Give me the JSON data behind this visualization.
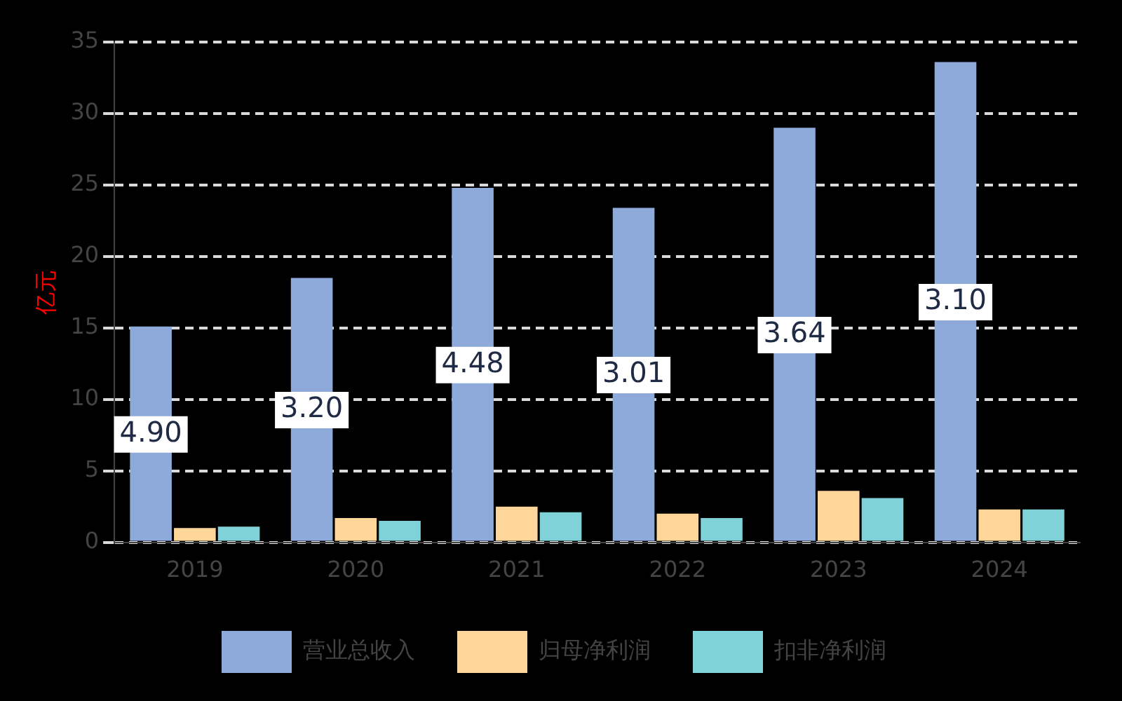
{
  "chart_data": {
    "type": "bar",
    "ylabel": "亿元",
    "categories": [
      "2019",
      "2020",
      "2021",
      "2022",
      "2023",
      "2024"
    ],
    "series": [
      {
        "name": "营业总收入",
        "color": "#8eaadb",
        "values": [
          15.1,
          18.5,
          24.8,
          23.4,
          29.0,
          33.6
        ]
      },
      {
        "name": "归母净利润",
        "color": "#ffd699",
        "values": [
          1.0,
          1.7,
          2.5,
          2.0,
          3.6,
          2.3
        ]
      },
      {
        "name": "扣非净利润",
        "color": "#7fd3d8",
        "values": [
          1.1,
          1.5,
          2.1,
          1.7,
          3.1,
          2.3
        ]
      }
    ],
    "annotations": [
      "4.90",
      "3.20",
      "4.48",
      "3.01",
      "3.64",
      "3.10"
    ],
    "ylim": [
      0,
      35
    ],
    "yticks": [
      0,
      5,
      10,
      15,
      20,
      25,
      30,
      35
    ],
    "grid": "y",
    "legend": "bottom"
  }
}
